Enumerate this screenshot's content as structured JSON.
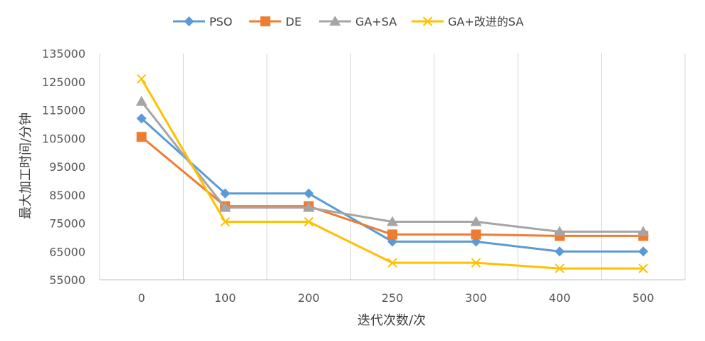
{
  "chart_data": {
    "type": "line",
    "title": "",
    "xlabel": "迭代次数/次",
    "ylabel": "最大加工时间/分钟",
    "categories": [
      "0",
      "100",
      "200",
      "250",
      "300",
      "400",
      "500"
    ],
    "ylim": [
      55000,
      135000
    ],
    "yticks": [
      "55000",
      "65000",
      "75000",
      "85000",
      "95000",
      "105000",
      "115000",
      "125000",
      "135000"
    ],
    "grid": "vertical",
    "legend_position": "top",
    "series": [
      {
        "name": "PSO",
        "color": "#5B9BD5",
        "marker": "diamond",
        "values": [
          112000,
          85500,
          85500,
          68500,
          68500,
          65000,
          65000
        ]
      },
      {
        "name": "DE",
        "color": "#ED7D31",
        "marker": "square",
        "values": [
          105500,
          81000,
          81000,
          71000,
          71000,
          70500,
          70500
        ]
      },
      {
        "name": "GA+SA",
        "color": "#A5A5A5",
        "marker": "triangle",
        "values": [
          118000,
          80500,
          80500,
          75500,
          75500,
          72000,
          72000
        ]
      },
      {
        "name": "GA+改进的SA",
        "color": "#FFC000",
        "marker": "x",
        "values": [
          126000,
          75500,
          75500,
          61000,
          61000,
          59000,
          59000
        ]
      }
    ]
  }
}
